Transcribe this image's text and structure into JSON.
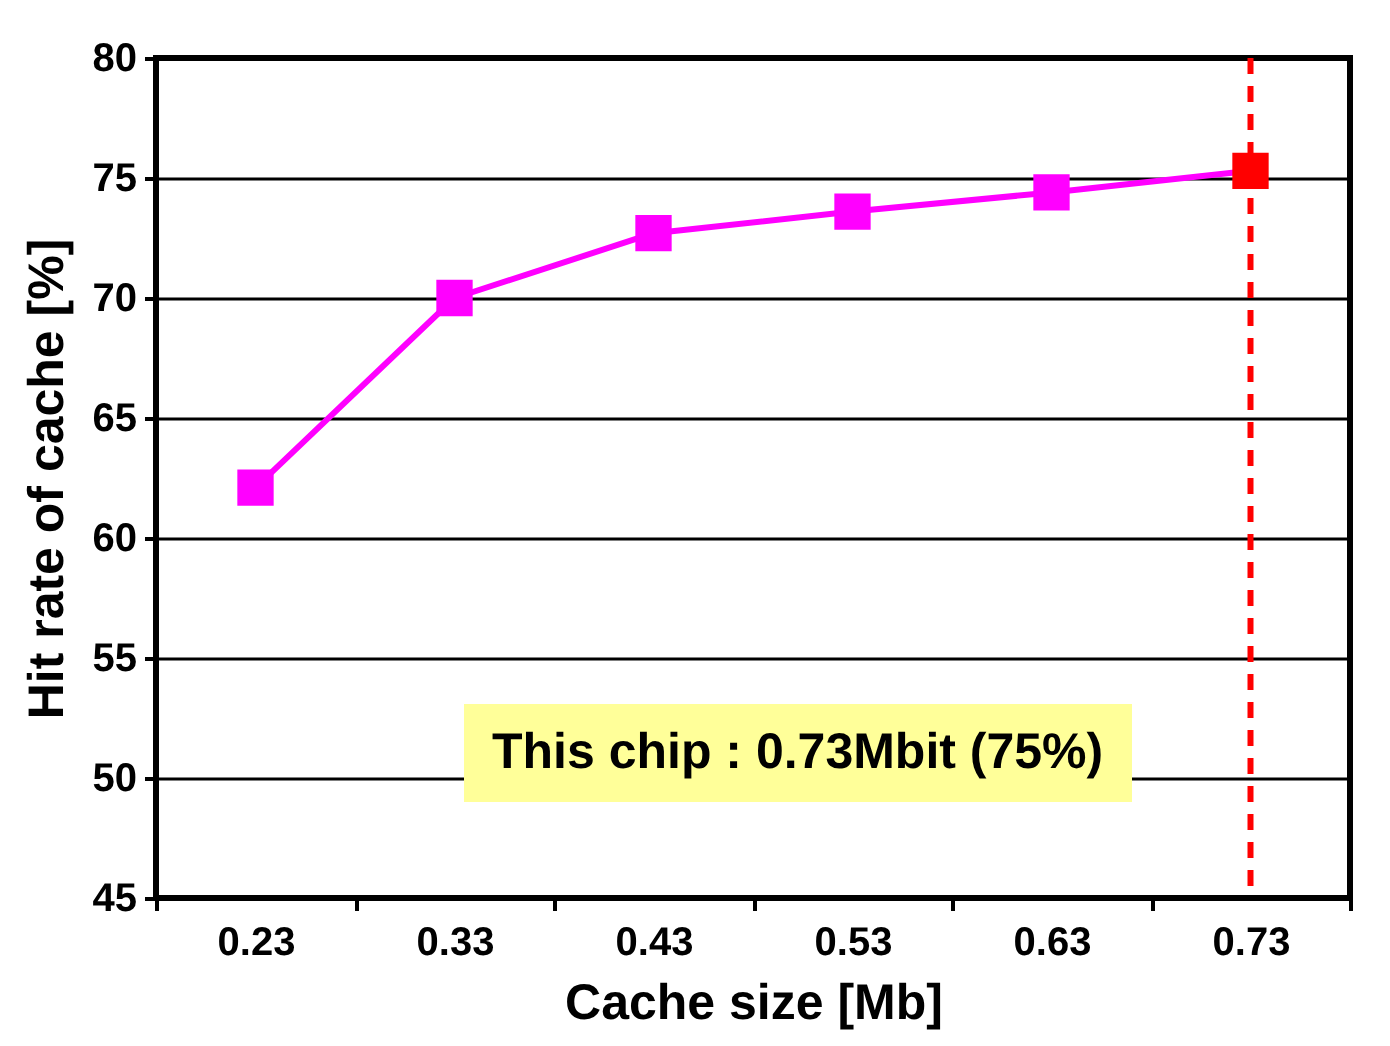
{
  "chart_data": {
    "type": "line",
    "xlabel": "Cache size [Mb]",
    "ylabel": "Hit rate of cache [%]",
    "categories": [
      "0.23",
      "0.33",
      "0.43",
      "0.53",
      "0.63",
      "0.73"
    ],
    "series": [
      {
        "color": "#ff00ff",
        "colors": [
          "#ff00ff",
          "#ff00ff",
          "#ff00ff",
          "#ff00ff",
          "#ff00ff",
          "#ff0000"
        ],
        "values": [
          62.1,
          70.0,
          72.7,
          73.6,
          74.4,
          75.3
        ]
      }
    ],
    "ylim": [
      45,
      80
    ],
    "yticks": [
      45,
      50,
      55,
      60,
      65,
      70,
      75,
      80
    ],
    "grid": "y",
    "marker": "square",
    "line_style": "solid",
    "ref_lines": [
      {
        "axis": "x",
        "value": "0.73",
        "color": "#ff0000",
        "line_style": "dashed"
      }
    ],
    "annotations": [
      "This chip : 0.73Mbit (75%)"
    ]
  }
}
